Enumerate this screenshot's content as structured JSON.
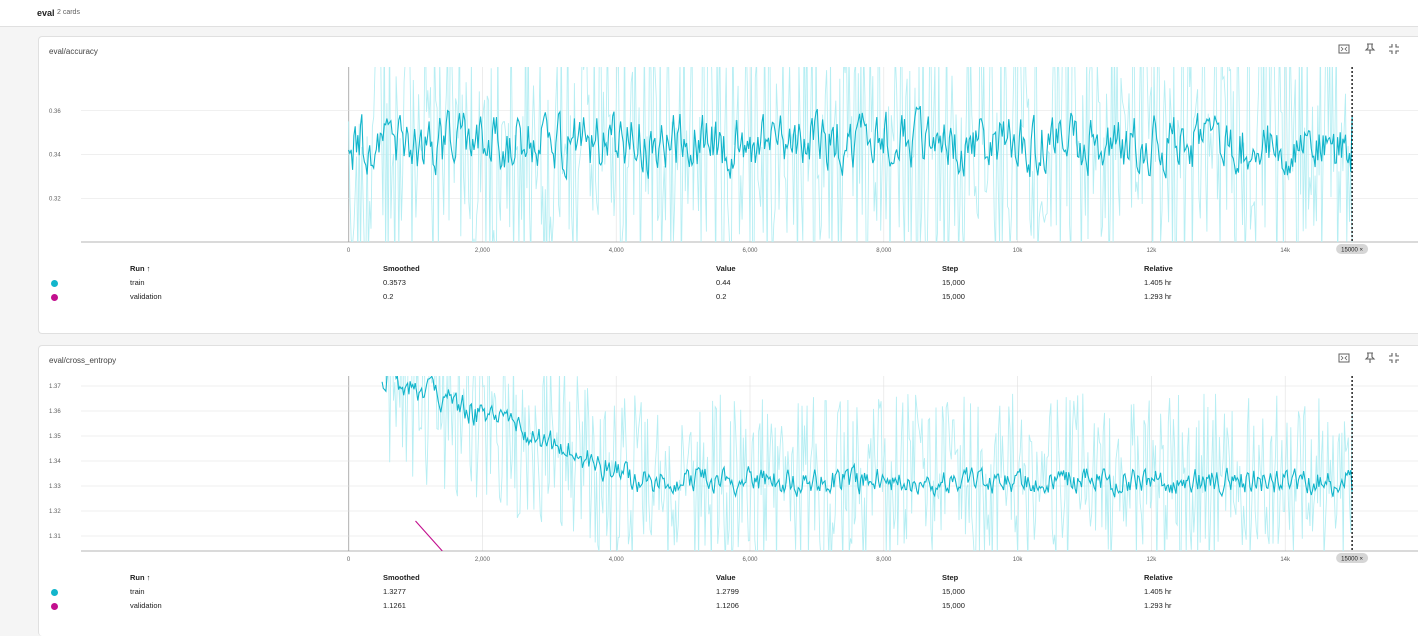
{
  "group": {
    "title": "eval",
    "count": "2 cards"
  },
  "colors": {
    "train": "#12b5cb",
    "train_raw": "#b6eef3",
    "validation": "#c20f8e",
    "validation_raw": "#ef9ad3",
    "grid": "#e0e0e0",
    "marker": "#000000"
  },
  "icons": {
    "fit": "fit-to-data-icon",
    "pin": "pin-icon",
    "fullscreen": "fullscreen-icon"
  },
  "cards": [
    {
      "title": "eval/accuracy",
      "table": {
        "headers": [
          "Run ↑",
          "Smoothed",
          "Value",
          "Step",
          "Relative"
        ],
        "rows": [
          {
            "run": "train",
            "smoothed": "0.3573",
            "value": "0.44",
            "step": "15,000",
            "relative": "1.405 hr"
          },
          {
            "run": "validation",
            "smoothed": "0.2",
            "value": "0.2",
            "step": "15,000",
            "relative": "1.293 hr"
          }
        ]
      },
      "marker_label": "15000 ×"
    },
    {
      "title": "eval/cross_entropy",
      "table": {
        "headers": [
          "Run ↑",
          "Smoothed",
          "Value",
          "Step",
          "Relative"
        ],
        "rows": [
          {
            "run": "train",
            "smoothed": "1.3277",
            "value": "1.2799",
            "step": "15,000",
            "relative": "1.405 hr"
          },
          {
            "run": "validation",
            "smoothed": "1.1261",
            "value": "1.1206",
            "step": "15,000",
            "relative": "1.293 hr"
          }
        ]
      },
      "marker_label": "15000 ×"
    }
  ],
  "chart_data": [
    {
      "type": "line",
      "title": "eval/accuracy",
      "x_ticks": [
        "0",
        "2,000",
        "4,000",
        "6,000",
        "8,000",
        "10k",
        "12k",
        "14k"
      ],
      "y_ticks": [
        "0.32",
        "0.34",
        "0.36"
      ],
      "xlim": [
        -4000,
        16000
      ],
      "ylim": [
        0.3,
        0.38
      ],
      "marker_x": 15000,
      "series": [
        {
          "name": "train",
          "kind": "smoothed",
          "x_range": [
            0,
            15000
          ],
          "start": 0.36,
          "end": 0.3573,
          "mean": 0.345,
          "spread": 0.02
        },
        {
          "name": "train",
          "kind": "raw",
          "x_range": [
            0,
            15000
          ],
          "mean": 0.345,
          "spread": 0.06
        }
      ]
    },
    {
      "type": "line",
      "title": "eval/cross_entropy",
      "x_ticks": [
        "0",
        "2,000",
        "4,000",
        "6,000",
        "8,000",
        "10k",
        "12k",
        "14k"
      ],
      "y_ticks": [
        "1.31",
        "1.32",
        "1.33",
        "1.34",
        "1.35",
        "1.36",
        "1.37"
      ],
      "xlim": [
        -4000,
        16000
      ],
      "ylim": [
        1.304,
        1.374
      ],
      "marker_x": 15000,
      "series": [
        {
          "name": "train",
          "kind": "smoothed",
          "x_range": [
            500,
            15000
          ],
          "start": 1.375,
          "end": 1.3277,
          "mean": 1.332,
          "spread": 0.008
        },
        {
          "name": "train",
          "kind": "raw",
          "x_range": [
            500,
            15000
          ],
          "mean": 1.332,
          "spread": 0.035
        },
        {
          "name": "validation",
          "kind": "smoothed",
          "x": [
            1000,
            1400
          ],
          "y": [
            1.316,
            1.304
          ]
        }
      ]
    }
  ]
}
